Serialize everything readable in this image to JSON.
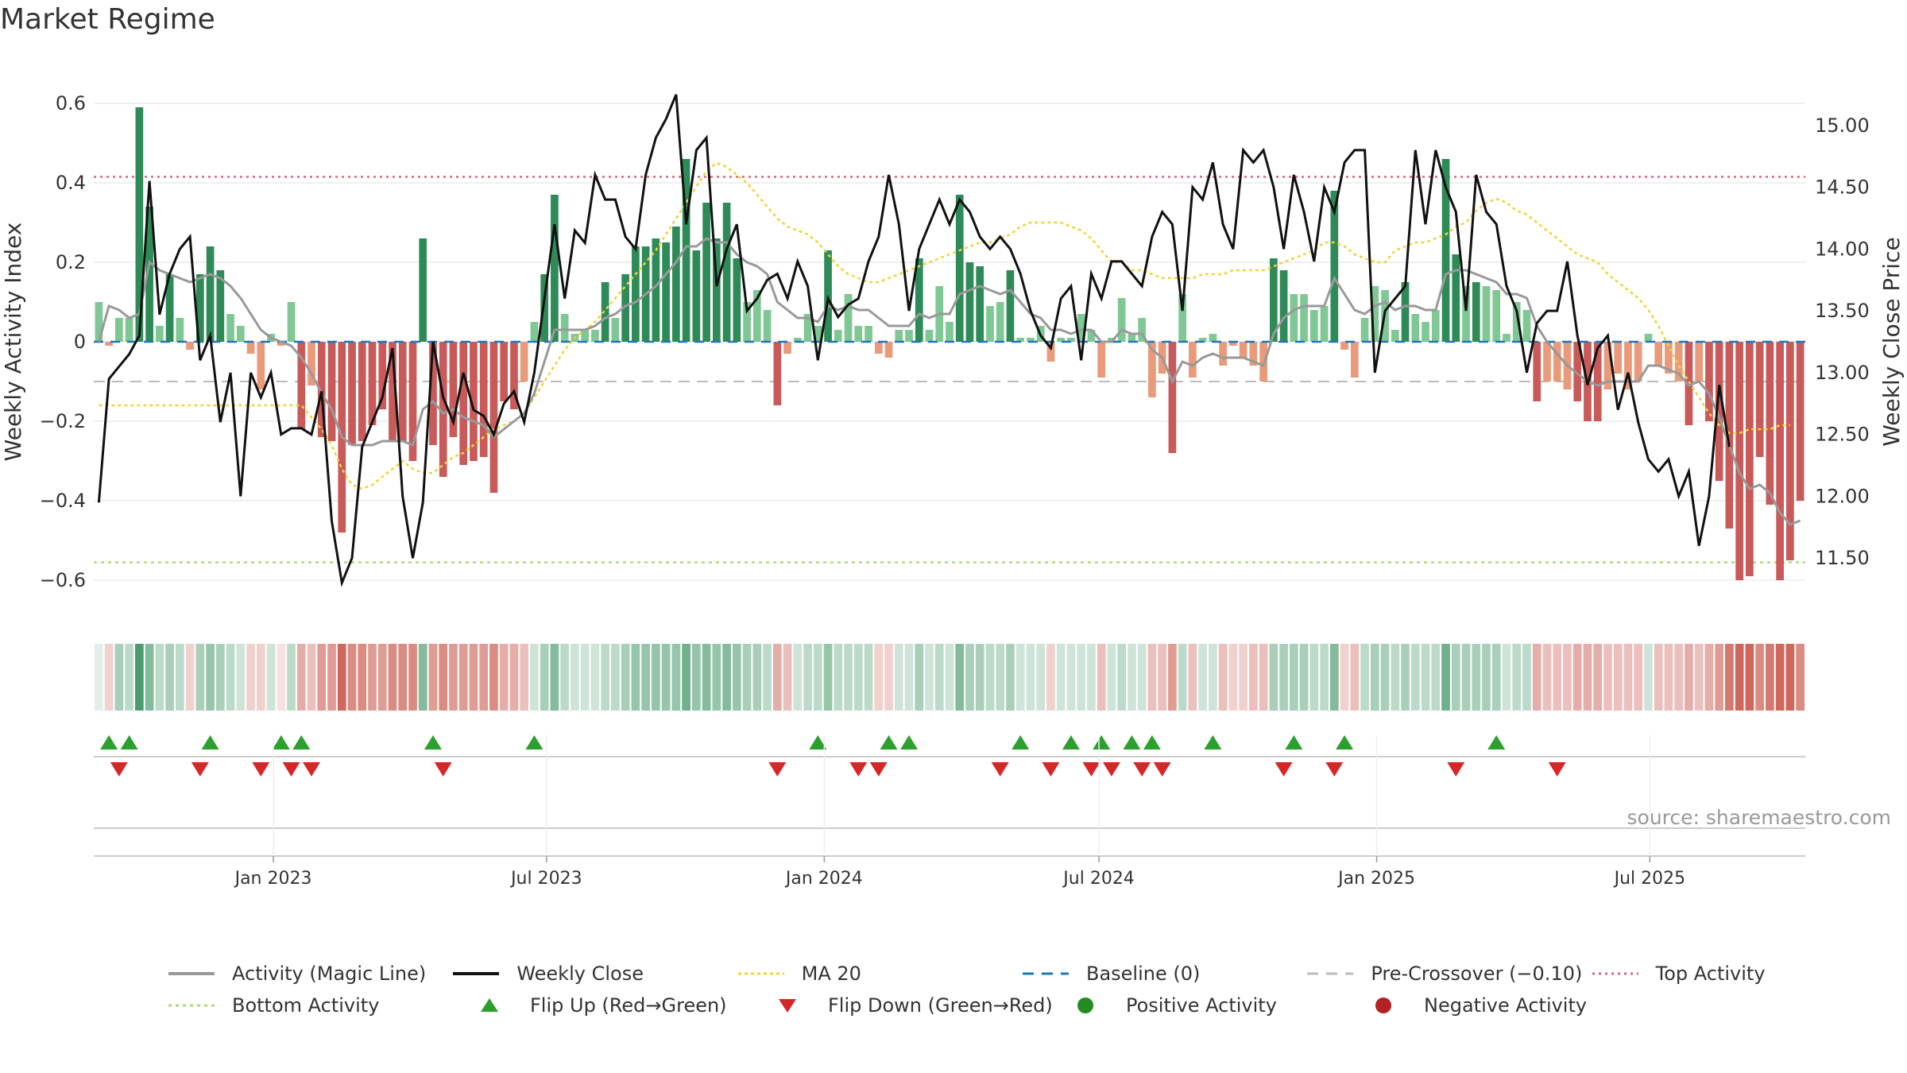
{
  "title": "Market Regime",
  "source": "source: sharemaestro.com",
  "colors": {
    "green_dark": "#2e8b57",
    "green_light": "#7fc794",
    "red_dark": "#c85a5a",
    "red_light": "#e99a7a",
    "price": "#111111",
    "activity_line": "#999999",
    "ma20": "#f0d33a",
    "baseline": "#1f77b4",
    "pre_crossover": "#bbbbbb",
    "top_activity": "#d06a7a",
    "bottom_activity": "#a8dc7a",
    "flip_up": "#2ca02c",
    "flip_down": "#d62728"
  },
  "legend": [
    {
      "label": "Activity (Magic Line)",
      "icon": "solid-gray-line"
    },
    {
      "label": "Weekly Close",
      "icon": "solid-black-line"
    },
    {
      "label": "MA 20",
      "icon": "dotted-yellow-line"
    },
    {
      "label": "Baseline (0)",
      "icon": "dashed-blue-line"
    },
    {
      "label": "Pre-Crossover (−0.10)",
      "icon": "dashed-gray-line"
    },
    {
      "label": "Top Activity",
      "icon": "dotted-red-line"
    },
    {
      "label": "Bottom Activity",
      "icon": "dotted-green-line"
    },
    {
      "label": "Flip Up (Red→Green)",
      "icon": "green-up-triangle"
    },
    {
      "label": "Flip Down (Green→Red)",
      "icon": "red-down-triangle"
    },
    {
      "label": "Positive Activity",
      "icon": "green-dot"
    },
    {
      "label": "Negative Activity",
      "icon": "red-dot"
    }
  ],
  "chart_data": {
    "type": "bar",
    "title": "Market Regime",
    "ylabel": "Weekly Activity Index",
    "y2label": "Weekly Close Price",
    "ylim": [
      -0.7,
      0.7
    ],
    "y2lim": [
      11.0,
      15.5
    ],
    "yticks": [
      -0.6,
      -0.4,
      -0.2,
      0,
      0.2,
      0.4,
      0.6
    ],
    "ytick_labels": [
      "−0.6",
      "−0.4",
      "−0.2",
      "0",
      "0.2",
      "0.4",
      "0.6"
    ],
    "y2ticks": [
      11.5,
      12.0,
      12.5,
      13.0,
      13.5,
      14.0,
      14.5,
      15.0
    ],
    "y2tick_labels": [
      "11.50",
      "12.00",
      "12.50",
      "13.00",
      "13.50",
      "14.00",
      "14.50",
      "15.00"
    ],
    "x_start": "2022-09-04",
    "x_end": "2025-10-12",
    "xticks": [
      "2023-01-01",
      "2023-07-01",
      "2024-01-01",
      "2024-07-01",
      "2025-01-01",
      "2025-07-01"
    ],
    "xtick_labels": [
      "Jan 2023",
      "Jul 2023",
      "Jan 2024",
      "Jul 2024",
      "Jan 2025",
      "Jul 2025"
    ],
    "top_activity": 0.415,
    "bottom_activity": -0.555,
    "pre_crossover": -0.1,
    "baseline": 0,
    "activity": [
      0.1,
      -0.01,
      0.06,
      0.06,
      0.59,
      0.34,
      0.04,
      0.17,
      0.06,
      -0.02,
      0.17,
      0.24,
      0.18,
      0.07,
      0.04,
      -0.03,
      -0.12,
      0.02,
      -0.01,
      0.1,
      -0.22,
      -0.11,
      -0.24,
      -0.25,
      -0.48,
      -0.26,
      -0.25,
      -0.21,
      -0.17,
      -0.25,
      -0.25,
      -0.3,
      0.26,
      -0.26,
      -0.34,
      -0.24,
      -0.31,
      -0.3,
      -0.29,
      -0.38,
      -0.15,
      -0.17,
      -0.1,
      0.05,
      0.17,
      0.37,
      0.07,
      0.02,
      0.03,
      0.03,
      0.15,
      0.06,
      0.17,
      0.24,
      0.24,
      0.26,
      0.25,
      0.29,
      0.46,
      0.23,
      0.35,
      0.26,
      0.35,
      0.21,
      0.1,
      0.13,
      0.08,
      -0.16,
      -0.03,
      0.01,
      0.07,
      0.04,
      0.23,
      0.03,
      0.12,
      0.04,
      0.04,
      -0.03,
      -0.04,
      0.03,
      0.03,
      0.21,
      0.03,
      0.14,
      0.05,
      0.37,
      0.2,
      0.19,
      0.09,
      0.1,
      0.18,
      0.01,
      0.01,
      0.04,
      -0.05,
      0.01,
      0.01,
      0.07,
      0.03,
      -0.09,
      0.01,
      0.11,
      0.02,
      0.06,
      -0.14,
      -0.08,
      -0.28,
      0.12,
      -0.09,
      0.01,
      0.02,
      -0.06,
      -0.01,
      -0.04,
      -0.06,
      -0.1,
      0.21,
      0.18,
      0.12,
      0.12,
      0.08,
      0.09,
      0.38,
      -0.02,
      -0.09,
      0.06,
      0.14,
      0.13,
      0.03,
      0.15,
      0.07,
      0.05,
      0.08,
      0.46,
      0.22,
      0.14,
      0.15,
      0.14,
      0.13,
      0.02,
      0.1,
      0.08,
      -0.15,
      -0.1,
      -0.1,
      -0.12,
      -0.15,
      -0.2,
      -0.2,
      -0.12,
      -0.08,
      -0.12,
      -0.1,
      0.02,
      -0.06,
      -0.08,
      -0.1,
      -0.21,
      -0.1,
      -0.2,
      -0.35,
      -0.47,
      -0.6,
      -0.59,
      -0.29,
      -0.41,
      -0.6,
      -0.55,
      -0.4
    ],
    "price": [
      11.95,
      12.95,
      13.05,
      13.15,
      13.3,
      14.55,
      13.47,
      13.8,
      14.0,
      14.1,
      13.1,
      13.3,
      12.6,
      13.0,
      12.0,
      13.0,
      12.8,
      13.0,
      12.5,
      12.55,
      12.55,
      12.5,
      12.85,
      11.8,
      11.3,
      11.5,
      12.4,
      12.6,
      12.8,
      13.2,
      12.0,
      11.5,
      11.95,
      13.25,
      12.8,
      12.6,
      13.0,
      12.7,
      12.65,
      12.5,
      12.75,
      12.85,
      12.6,
      13.0,
      13.6,
      14.2,
      13.6,
      14.15,
      14.05,
      14.6,
      14.4,
      14.4,
      14.1,
      14.0,
      14.6,
      14.9,
      15.05,
      15.25,
      14.2,
      14.8,
      14.9,
      13.7,
      14.0,
      14.2,
      13.5,
      13.6,
      13.75,
      13.8,
      13.6,
      13.9,
      13.7,
      13.1,
      13.6,
      13.45,
      13.55,
      13.6,
      13.9,
      14.1,
      14.6,
      14.2,
      13.5,
      14.0,
      14.2,
      14.4,
      14.2,
      14.4,
      14.3,
      14.1,
      14.0,
      14.1,
      14.0,
      13.8,
      13.5,
      13.3,
      13.2,
      13.6,
      13.7,
      13.1,
      13.8,
      13.6,
      13.9,
      13.9,
      13.8,
      13.7,
      14.1,
      14.3,
      14.2,
      13.5,
      14.5,
      14.4,
      14.7,
      14.2,
      14.0,
      14.8,
      14.7,
      14.8,
      14.5,
      14.0,
      14.6,
      14.3,
      13.9,
      14.5,
      14.3,
      14.7,
      14.8,
      14.8,
      13.0,
      13.5,
      13.6,
      13.7,
      14.8,
      14.2,
      14.8,
      14.5,
      14.3,
      13.5,
      14.6,
      14.3,
      14.2,
      13.7,
      13.5,
      13.0,
      13.4,
      13.5,
      13.5,
      13.9,
      13.3,
      12.9,
      13.2,
      13.3,
      12.7,
      13.0,
      12.6,
      12.3,
      12.2,
      12.3,
      12.0,
      12.2,
      11.6,
      12.0,
      12.9,
      12.4
    ],
    "magic_line": [
      0.0,
      0.09,
      0.08,
      0.06,
      0.07,
      0.2,
      0.18,
      0.17,
      0.16,
      0.15,
      0.16,
      0.17,
      0.16,
      0.14,
      0.11,
      0.07,
      0.03,
      0.01,
      0.0,
      -0.01,
      -0.04,
      -0.08,
      -0.13,
      -0.17,
      -0.24,
      -0.26,
      -0.26,
      -0.26,
      -0.25,
      -0.25,
      -0.25,
      -0.26,
      -0.17,
      -0.15,
      -0.18,
      -0.17,
      -0.19,
      -0.2,
      -0.21,
      -0.24,
      -0.22,
      -0.2,
      -0.18,
      -0.13,
      -0.05,
      0.03,
      0.03,
      0.03,
      0.03,
      0.04,
      0.06,
      0.07,
      0.09,
      0.1,
      0.12,
      0.14,
      0.17,
      0.2,
      0.24,
      0.24,
      0.26,
      0.25,
      0.25,
      0.22,
      0.2,
      0.19,
      0.17,
      0.1,
      0.08,
      0.06,
      0.06,
      0.05,
      0.09,
      0.08,
      0.09,
      0.08,
      0.08,
      0.06,
      0.04,
      0.04,
      0.04,
      0.07,
      0.06,
      0.07,
      0.07,
      0.12,
      0.13,
      0.14,
      0.13,
      0.12,
      0.13,
      0.1,
      0.07,
      0.06,
      0.03,
      0.03,
      0.02,
      0.03,
      0.03,
      0.0,
      0.0,
      0.03,
      0.02,
      0.02,
      -0.02,
      -0.04,
      -0.1,
      -0.05,
      -0.06,
      -0.04,
      -0.03,
      -0.04,
      -0.04,
      -0.04,
      -0.05,
      -0.06,
      0.02,
      0.06,
      0.08,
      0.09,
      0.09,
      0.09,
      0.16,
      0.12,
      0.08,
      0.07,
      0.09,
      0.1,
      0.08,
      0.09,
      0.09,
      0.08,
      0.08,
      0.17,
      0.18,
      0.18,
      0.17,
      0.16,
      0.15,
      0.12,
      0.12,
      0.11,
      0.04,
      0.0,
      -0.03,
      -0.06,
      -0.08,
      -0.1,
      -0.11,
      -0.1,
      -0.1,
      -0.1,
      -0.1,
      -0.06,
      -0.06,
      -0.07,
      -0.08,
      -0.11,
      -0.1,
      -0.13,
      -0.19,
      -0.26,
      -0.33,
      -0.37,
      -0.36,
      -0.38,
      -0.43,
      -0.46,
      -0.45
    ],
    "ma20": [
      -0.16,
      -0.16,
      -0.16,
      -0.16,
      -0.16,
      -0.16,
      -0.16,
      -0.16,
      -0.16,
      -0.16,
      -0.16,
      -0.16,
      -0.16,
      -0.16,
      -0.16,
      -0.16,
      -0.16,
      -0.16,
      -0.16,
      -0.16,
      -0.16,
      -0.19,
      -0.22,
      -0.26,
      -0.32,
      -0.36,
      -0.37,
      -0.36,
      -0.34,
      -0.32,
      -0.3,
      -0.32,
      -0.33,
      -0.33,
      -0.31,
      -0.29,
      -0.28,
      -0.26,
      -0.24,
      -0.22,
      -0.21,
      -0.2,
      -0.18,
      -0.14,
      -0.1,
      -0.06,
      -0.02,
      0.01,
      0.03,
      0.05,
      0.08,
      0.11,
      0.14,
      0.17,
      0.2,
      0.23,
      0.27,
      0.31,
      0.35,
      0.39,
      0.43,
      0.45,
      0.44,
      0.42,
      0.4,
      0.37,
      0.34,
      0.31,
      0.29,
      0.28,
      0.27,
      0.25,
      0.22,
      0.19,
      0.17,
      0.16,
      0.15,
      0.15,
      0.16,
      0.17,
      0.18,
      0.19,
      0.2,
      0.21,
      0.22,
      0.23,
      0.24,
      0.25,
      0.25,
      0.26,
      0.27,
      0.29,
      0.3,
      0.3,
      0.3,
      0.3,
      0.29,
      0.28,
      0.26,
      0.23,
      0.2,
      0.2,
      0.18,
      0.18,
      0.17,
      0.16,
      0.16,
      0.16,
      0.16,
      0.17,
      0.17,
      0.17,
      0.18,
      0.18,
      0.18,
      0.18,
      0.19,
      0.2,
      0.21,
      0.22,
      0.23,
      0.25,
      0.25,
      0.24,
      0.22,
      0.21,
      0.2,
      0.2,
      0.23,
      0.24,
      0.25,
      0.25,
      0.26,
      0.27,
      0.29,
      0.3,
      0.33,
      0.35,
      0.36,
      0.35,
      0.33,
      0.32,
      0.3,
      0.28,
      0.26,
      0.24,
      0.22,
      0.21,
      0.2,
      0.17,
      0.15,
      0.13,
      0.11,
      0.08,
      0.04,
      -0.01,
      -0.06,
      -0.1,
      -0.14,
      -0.18,
      -0.21,
      -0.23,
      -0.23,
      -0.22,
      -0.22,
      -0.22,
      -0.21,
      -0.21
    ],
    "strip_intensity": [
      0.1,
      0.2,
      0.4,
      0.3,
      0.9,
      0.6,
      0.3,
      0.4,
      0.3,
      0.2,
      0.4,
      0.5,
      0.4,
      0.3,
      0.2,
      0.2,
      0.2,
      0.2,
      0.1,
      0.3,
      0.4,
      0.3,
      0.5,
      0.5,
      0.8,
      0.6,
      0.6,
      0.5,
      0.5,
      0.6,
      0.6,
      0.6,
      0.6,
      0.5,
      0.6,
      0.5,
      0.5,
      0.5,
      0.5,
      0.6,
      0.4,
      0.4,
      0.3,
      0.2,
      0.4,
      0.6,
      0.3,
      0.2,
      0.2,
      0.2,
      0.3,
      0.3,
      0.4,
      0.5,
      0.5,
      0.5,
      0.5,
      0.5,
      0.7,
      0.5,
      0.6,
      0.5,
      0.6,
      0.5,
      0.4,
      0.4,
      0.3,
      0.4,
      0.3,
      0.2,
      0.3,
      0.3,
      0.5,
      0.3,
      0.3,
      0.3,
      0.3,
      0.2,
      0.2,
      0.2,
      0.2,
      0.4,
      0.2,
      0.3,
      0.2,
      0.6,
      0.4,
      0.4,
      0.3,
      0.3,
      0.4,
      0.2,
      0.2,
      0.2,
      0.2,
      0.2,
      0.2,
      0.2,
      0.2,
      0.3,
      0.2,
      0.3,
      0.2,
      0.2,
      0.3,
      0.3,
      0.5,
      0.3,
      0.3,
      0.2,
      0.2,
      0.3,
      0.2,
      0.2,
      0.3,
      0.3,
      0.4,
      0.4,
      0.4,
      0.4,
      0.3,
      0.3,
      0.6,
      0.2,
      0.3,
      0.3,
      0.4,
      0.4,
      0.3,
      0.4,
      0.3,
      0.3,
      0.3,
      0.7,
      0.4,
      0.4,
      0.4,
      0.4,
      0.4,
      0.2,
      0.3,
      0.3,
      0.4,
      0.3,
      0.3,
      0.3,
      0.4,
      0.4,
      0.4,
      0.3,
      0.3,
      0.3,
      0.3,
      0.2,
      0.3,
      0.3,
      0.3,
      0.4,
      0.3,
      0.4,
      0.5,
      0.7,
      0.8,
      0.8,
      0.6,
      0.7,
      0.8,
      0.8,
      0.6
    ],
    "flip_up_weeks": [
      1,
      3,
      11,
      18,
      20,
      33,
      43,
      71,
      78,
      80,
      91,
      96,
      99,
      102,
      104,
      110,
      118,
      123,
      138
    ],
    "flip_down_weeks": [
      2,
      10,
      16,
      19,
      21,
      34,
      67,
      75,
      77,
      89,
      94,
      98,
      100,
      103,
      105,
      117,
      122,
      134,
      144
    ]
  }
}
